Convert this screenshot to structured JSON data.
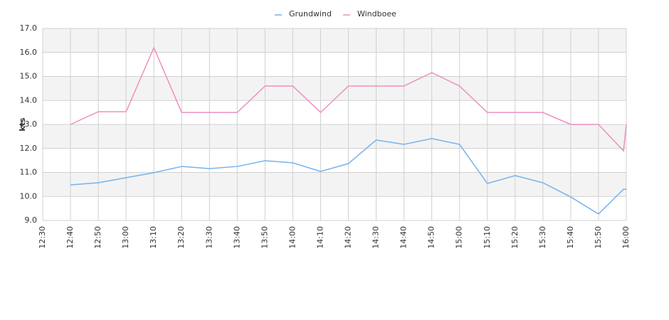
{
  "chart_data": {
    "type": "line",
    "y_label": "kts",
    "x": [
      "12:40",
      "12:50",
      "13:00",
      "13:10",
      "13:20",
      "13:30",
      "13:40",
      "13:50",
      "14:00",
      "14:10",
      "14:20",
      "14:30",
      "14:40",
      "14:50",
      "15:00",
      "15:10",
      "15:20",
      "15:30",
      "15:40",
      "15:50",
      "15:59",
      "16:00"
    ],
    "series": [
      {
        "name": "Grundwind",
        "color": "#74b3ef",
        "values": [
          10.48,
          10.57,
          10.78,
          10.99,
          11.25,
          11.16,
          11.25,
          11.49,
          11.4,
          11.04,
          11.37,
          12.35,
          12.17,
          12.41,
          12.17,
          10.54,
          10.87,
          10.57,
          9.98,
          9.27,
          10.3,
          10.3
        ]
      },
      {
        "name": "Windboee",
        "color": "#ee8fc0",
        "values": [
          13.0,
          13.53,
          13.53,
          16.2,
          13.5,
          13.5,
          13.5,
          14.6,
          14.6,
          13.5,
          14.6,
          14.6,
          14.6,
          15.16,
          14.6,
          13.5,
          13.5,
          13.5,
          13.0,
          13.0,
          11.9,
          13.0
        ]
      }
    ],
    "xlim": [
      "12:30",
      "16:00"
    ],
    "xticks": [
      "12:30",
      "12:40",
      "12:50",
      "13:00",
      "13:10",
      "13:20",
      "13:30",
      "13:40",
      "13:50",
      "14:00",
      "14:10",
      "14:20",
      "14:30",
      "14:40",
      "14:50",
      "15:00",
      "15:10",
      "15:20",
      "15:30",
      "15:40",
      "15:50",
      "16:00"
    ],
    "ylim": [
      9,
      17
    ],
    "yticks": [
      {
        "value": 9,
        "label": "9.0"
      },
      {
        "value": 10,
        "label": "10.0"
      },
      {
        "value": 11,
        "label": "11.0"
      },
      {
        "value": 12,
        "label": "12.0"
      },
      {
        "value": 13,
        "label": "13.0"
      },
      {
        "value": 14,
        "label": "14.0"
      },
      {
        "value": 15,
        "label": "15.0"
      },
      {
        "value": 16,
        "label": "16.0"
      },
      {
        "value": 17,
        "label": "17.0"
      }
    ],
    "grid": true,
    "legend": "top"
  }
}
